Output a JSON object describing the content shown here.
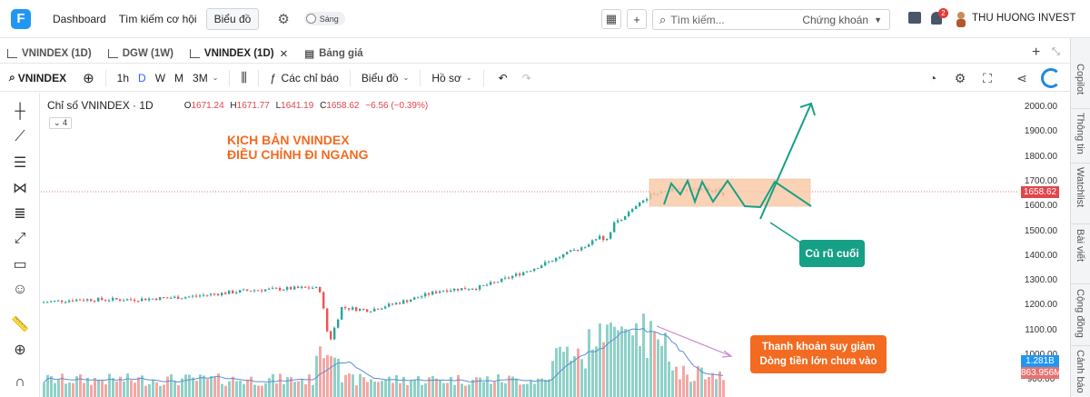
{
  "nav": {
    "dashboard": "Dashboard",
    "opportunity": "Tìm kiếm cơ hội",
    "charts": "Biểu đồ",
    "theme": "Sáng",
    "search_placeholder": "Tìm kiếm...",
    "search_category": "Chứng khoán",
    "notification_count": "2",
    "user": "THU HUONG INVEST"
  },
  "tabs": [
    {
      "label": "VNINDEX (1D)"
    },
    {
      "label": "DGW (1W)"
    },
    {
      "label": "VNINDEX (1D)"
    },
    {
      "label": "Bảng giá"
    }
  ],
  "toolbar": {
    "symbol": "VNINDEX",
    "tf_1h": "1h",
    "tf_d": "D",
    "tf_w": "W",
    "tf_m": "M",
    "tf_3m": "3M",
    "indicators": "Các chỉ báo",
    "chart_menu": "Biểu đồ",
    "profile": "Hồ sơ"
  },
  "legend": {
    "title": "Chỉ số VNINDEX · 1D",
    "o_label": "O",
    "o": "1671.24",
    "h_label": "H",
    "h": "1671.77",
    "l_label": "L",
    "l": "1641.19",
    "c_label": "C",
    "c": "1658.62",
    "chg": "−6.56 (−0.39%)",
    "collapse": "4"
  },
  "annotations": {
    "title_line1": "KỊCH BẢN VNINDEX",
    "title_line2": "ĐIỀU CHỈNH ĐI NGANG",
    "callout": "Củ rũ cuối",
    "liquidity_line1": "Thanh khoản suy giảm",
    "liquidity_line2": "Dòng tiền lớn chưa vào"
  },
  "yaxis": {
    "ticks": [
      "2000.00",
      "1900.00",
      "1800.00",
      "1700.00",
      "1600.00",
      "1500.00",
      "1400.00",
      "1300.00",
      "1200.00",
      "1100.00",
      "1000.00",
      "900.00"
    ],
    "price_tag": "1658.62",
    "vol_ma_tag": "1.281B",
    "vol_tag": "863.956M"
  },
  "right_panel": [
    "Copilot",
    "Thông tin",
    "Watchlist",
    "Bài viết",
    "Cộng đồng",
    "Cảnh báo"
  ],
  "colors": {
    "up": "#26a69a",
    "down": "#ef5350",
    "accent": "#2962ff",
    "annotation": "#f26b21",
    "scenario": "#16a085"
  },
  "chart_data": {
    "type": "candlestick",
    "series": [
      {
        "name": "Chỉ số VNINDEX · 1D"
      }
    ],
    "ylim": [
      900,
      2040
    ],
    "range_box": [
      1610,
      1710
    ],
    "last_close": 1658.62
  }
}
